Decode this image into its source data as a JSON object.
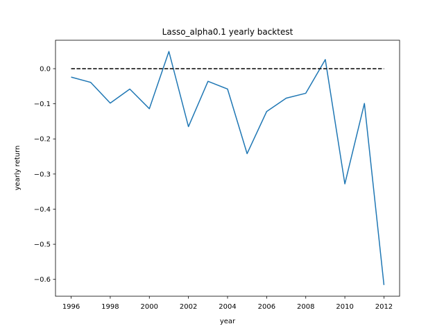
{
  "chart_data": {
    "type": "line",
    "title": "Lasso_alpha0.1 yearly backtest",
    "xlabel": "year",
    "ylabel": "yearly return",
    "xlim": [
      1995.2,
      2012.8
    ],
    "ylim": [
      -0.648,
      0.081
    ],
    "xticks": [
      1996,
      1998,
      2000,
      2002,
      2004,
      2006,
      2008,
      2010,
      2012
    ],
    "xtick_labels": [
      "1996",
      "1998",
      "2000",
      "2002",
      "2004",
      "2006",
      "2008",
      "2010",
      "2012"
    ],
    "yticks": [
      0.0,
      -0.1,
      -0.2,
      -0.3,
      -0.4,
      -0.5,
      -0.6
    ],
    "ytick_labels": [
      "0.0",
      "−0.1",
      "−0.2",
      "−0.3",
      "−0.4",
      "−0.5",
      "−0.6"
    ],
    "grid": false,
    "legend": "none",
    "x": [
      1996,
      1997,
      1998,
      1999,
      2000,
      2001,
      2002,
      2003,
      2004,
      2005,
      2006,
      2007,
      2008,
      2009,
      2010,
      2011,
      2012
    ],
    "series": [
      {
        "values": [
          -0.024,
          -0.039,
          -0.098,
          -0.058,
          -0.114,
          0.049,
          -0.165,
          -0.036,
          -0.058,
          -0.242,
          -0.122,
          -0.084,
          -0.07,
          0.026,
          -0.328,
          -0.099,
          -0.616
        ],
        "color": "#1f77b4",
        "style": "solid"
      },
      {
        "values": [
          0,
          0,
          0,
          0,
          0,
          0,
          0,
          0,
          0,
          0,
          0,
          0,
          0,
          0,
          0,
          0,
          0
        ],
        "color": "#000000",
        "style": "dashed"
      }
    ]
  }
}
